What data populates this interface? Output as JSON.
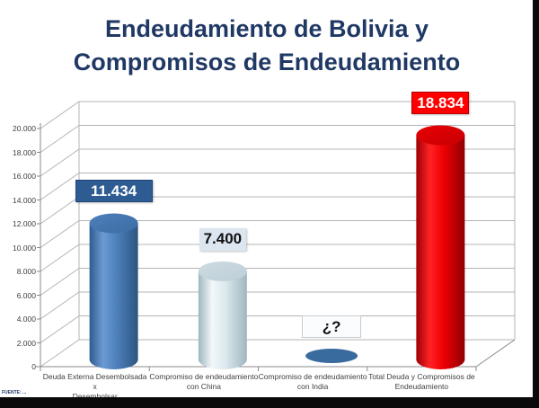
{
  "title": {
    "line1": "Endeudamiento de Bolivia y",
    "line2": "Compromisos de Endeudamiento",
    "color": "#1F3864"
  },
  "source_note": "FUENTE: ...",
  "chart_data": {
    "type": "bar",
    "subtype": "3d-cylinder",
    "title": "Endeudamiento de Bolivia y Compromisos de Endeudamiento",
    "xlabel": "",
    "ylabel": "",
    "ylim": [
      0,
      20000
    ],
    "ytick_step": 2000,
    "ytick_labels": [
      "0",
      "2.000",
      "4.000",
      "6.000",
      "8.000",
      "10.000",
      "12.000",
      "14.000",
      "16.000",
      "18.000",
      "20.000"
    ],
    "grid": true,
    "legend": false,
    "categories": [
      "Deuda Externa Desembolsada x Desembolsar",
      "Compromiso de endeudamiento con China",
      "Compromiso de endeudamiento con India",
      "Total Deuda y Compromisos de Endeudamiento"
    ],
    "categories_lines": [
      [
        "Deuda Externa Desembolsada x",
        "Desembolsar"
      ],
      [
        "Compromiso de endeudamiento",
        "con China"
      ],
      [
        "Compromiso de endeudamiento",
        "con India"
      ],
      [
        "Total Deuda y  Compromisos de",
        "Endeudamiento"
      ]
    ],
    "values": [
      11434,
      7400,
      null,
      18834
    ],
    "value_labels": [
      "11.434",
      "7.400",
      "¿?",
      "18.834"
    ],
    "bar_colors": [
      "#4F81BD",
      "#DDE9EE",
      "#3A6B9E",
      "#F00004"
    ],
    "cylinders": [
      {
        "body": [
          "#2F5B90",
          "#6C9BD2",
          "#4E80BC",
          "#2C567F"
        ],
        "top": [
          "#4D7FB9",
          "#3C6DA4"
        ]
      },
      {
        "body": [
          "#9FB6C0",
          "#F2F7F9",
          "#DDE9EE",
          "#9FB6C0"
        ],
        "top": [
          "#CDDBE1",
          "#BECFD7"
        ]
      },
      {
        "body": [
          "#3A6B9E"
        ],
        "top": [
          "#3A6B9E"
        ]
      },
      {
        "body": [
          "#9E0003",
          "#FF2325",
          "#F00004",
          "#900002"
        ],
        "top": [
          "#E80004",
          "#C70003"
        ]
      }
    ],
    "label_styles": [
      {
        "bg": "#2E5C92",
        "fg": "#FFFFFF",
        "border": "#1F4779",
        "width": 86
      },
      {
        "bg": "#DCE6F1",
        "fg": "#111111",
        "border": "#DCE6F1",
        "width": 52
      },
      {
        "bg": "#FBFCFD",
        "fg": "#111111",
        "border": "#C8CDD2",
        "width": 66
      },
      {
        "bg": "#FE0000",
        "fg": "#FFFFFF",
        "border": "#B00000",
        "width": 64
      }
    ],
    "axis_color": "#8A8A8A",
    "grid_color": "#B4B4B4"
  }
}
